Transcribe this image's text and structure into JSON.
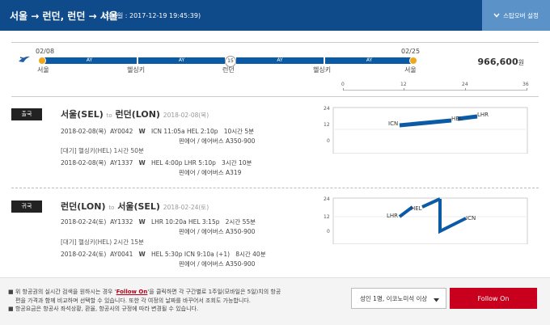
{
  "header": {
    "route": "서울 → 런던, 런던 → 서울",
    "searched": "(검색일 : 2017-12-19 19:45:39)",
    "settings_button": "스탑오버 설정"
  },
  "summary": {
    "segments": [
      "AY",
      "AY",
      "AY",
      "AY"
    ],
    "stop_count": "15",
    "start_date": "02/08",
    "end_date": "02/25",
    "places": [
      "서울",
      "헬싱키",
      "런던",
      "헬싱키",
      "서울"
    ],
    "price_value": "966,600",
    "price_unit": "원",
    "scale_ticks": [
      "0",
      "12",
      "24",
      "36"
    ]
  },
  "outbound": {
    "badge": "출국",
    "from": "서울(SEL)",
    "to_word": "to",
    "to": "런던(LON)",
    "date": "2018-02-08(목)",
    "flight1": {
      "date": "2018-02-08(목)",
      "number": "AY0042",
      "class": "W",
      "route": "ICN 11:05a HEL 2:10p",
      "duration": "10시간 5분",
      "aircraft": "핀에어 / 에어버스 A350-900"
    },
    "layover": "[대기] 헬싱키(HEL)   1시간 50분",
    "flight2": {
      "date": "2018-02-08(목)",
      "number": "AY1337",
      "class": "W",
      "route": "HEL 4:00p LHR 5:10p",
      "duration": "3시간 10분",
      "aircraft": "핀에어 / 에어버스 A319"
    },
    "graph": {
      "yticks": [
        "24",
        "12",
        "0"
      ],
      "labels": [
        "ICN",
        "HEL",
        "LHR"
      ]
    }
  },
  "inbound": {
    "badge": "귀국",
    "from": "런던(LON)",
    "to_word": "to",
    "to": "서울(SEL)",
    "date": "2018-02-24(토)",
    "flight1": {
      "date": "2018-02-24(토)",
      "number": "AY1332",
      "class": "W",
      "route": "LHR 10:20a HEL 3:15p",
      "duration": "2시간 55분",
      "aircraft": "핀에어 / 에어버스 A350-900"
    },
    "layover": "[대기] 헬싱키(HEL)   2시간 15분",
    "flight2": {
      "date": "2018-02-24(토)",
      "number": "AY0041",
      "class": "W",
      "route": "HEL 5:30p ICN 9:10a (+1)",
      "duration": "8시간 40분",
      "aircraft": "핀에어 / 에어버스 A350-900"
    },
    "graph": {
      "yticks": [
        "24",
        "12",
        "0"
      ],
      "labels": [
        "LHR",
        "HEL",
        "ICN"
      ]
    }
  },
  "footer": {
    "note1_a": "위 항공권의 실시간 검색을 원하시는 경우 '",
    "note1_link": "Follow On",
    "note1_b": "'을 클릭하면 각 구간별로 1주일(모바일은 5일)치의 항공편을 가격과 함께 비교하며 선택할 수 있습니다. 또한 각 여정의 날짜를 바꾸어서 조회도 가능합니다.",
    "note2": "항공요금은 항공사 좌석상황, 환율, 항공사의 규정에 따라 변경될 수 있습니다.",
    "passenger_select": "성인 1명, 이코노미석 이상",
    "follow_button": "Follow On"
  }
}
